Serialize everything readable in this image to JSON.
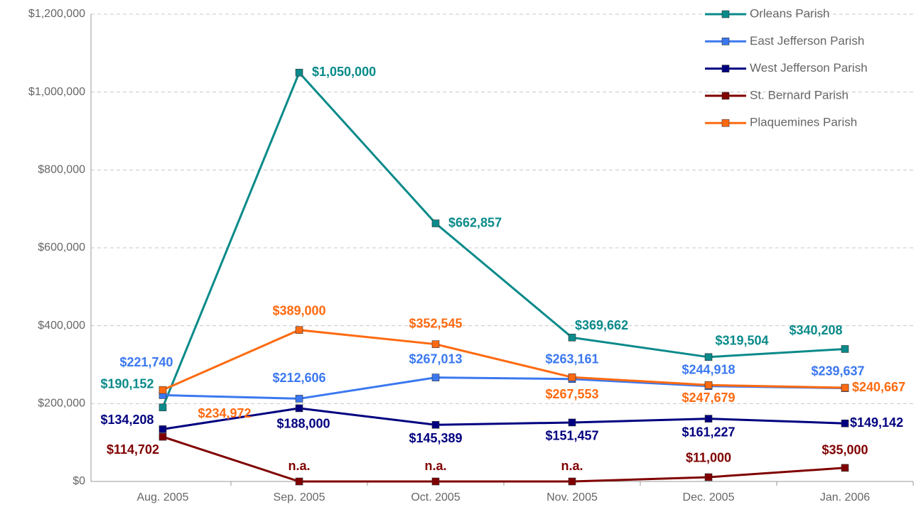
{
  "chart_data": {
    "type": "line",
    "categories": [
      "Aug. 2005",
      "Sep. 2005",
      "Oct. 2005",
      "Nov. 2005",
      "Dec. 2005",
      "Jan. 2006"
    ],
    "series": [
      {
        "name": "Orleans Parish",
        "color": "#0a8a8a",
        "values": [
          190152,
          1050000,
          662857,
          369662,
          319504,
          340208
        ],
        "value_labels": [
          "$190,152",
          "$1,050,000",
          "$662,857",
          "$369,662",
          "$319,504",
          "$340,208"
        ]
      },
      {
        "name": "East Jefferson Parish",
        "color": "#3b78f0",
        "values": [
          221740,
          212606,
          267013,
          263161,
          244918,
          239637
        ],
        "value_labels": [
          "$221,740",
          "$212,606",
          "$267,013",
          "$263,161",
          "$244,918",
          "$239,637"
        ]
      },
      {
        "name": "West Jefferson Parish",
        "color": "#000080",
        "values": [
          134208,
          188000,
          145389,
          151457,
          161227,
          149142
        ],
        "value_labels": [
          "$134,208",
          "$188,000",
          "$145,389",
          "$151,457",
          "$161,227",
          "$149,142"
        ]
      },
      {
        "name": "St. Bernard Parish",
        "color": "#800000",
        "values": [
          114702,
          0,
          0,
          0,
          11000,
          35000
        ],
        "value_labels": [
          "$114,702",
          "n.a.",
          "n.a.",
          "n.a.",
          "$11,000",
          "$35,000"
        ]
      },
      {
        "name": "Plaquemines Parish",
        "color": "#ff6a10",
        "values": [
          234972,
          389000,
          352545,
          267553,
          247679,
          240667
        ],
        "value_labels": [
          "$234,972",
          "$389,000",
          "$352,545",
          "$267,553",
          "$247,679",
          "$240,667"
        ]
      }
    ],
    "ylim": [
      0,
      1200000
    ],
    "yticks": [
      {
        "value": 0,
        "label": "$0"
      },
      {
        "value": 200000,
        "label": "$200,000"
      },
      {
        "value": 400000,
        "label": "$400,000"
      },
      {
        "value": 600000,
        "label": "$600,000"
      },
      {
        "value": 800000,
        "label": "$800,000"
      },
      {
        "value": 1000000,
        "label": "$1,000,000"
      },
      {
        "value": 1200000,
        "label": "$1,200,000"
      }
    ],
    "grid": true,
    "legend": "top-right"
  }
}
